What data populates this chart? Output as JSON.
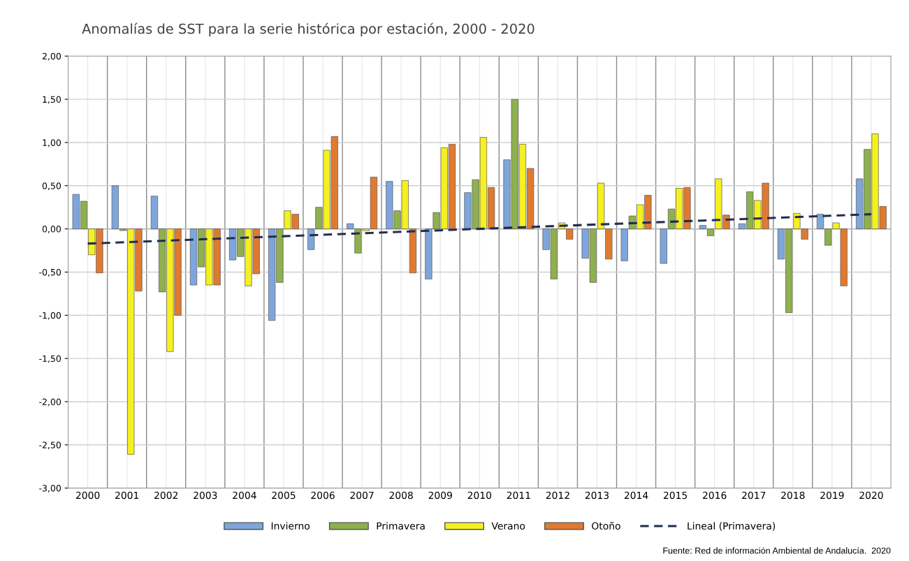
{
  "chart_data": {
    "type": "bar",
    "title": "Anomalías de SST para la serie histórica por estación, 2000 - 2020",
    "categories": [
      "2000",
      "2001",
      "2002",
      "2003",
      "2004",
      "2005",
      "2006",
      "2007",
      "2008",
      "2009",
      "2010",
      "2011",
      "2012",
      "2013",
      "2014",
      "2015",
      "2016",
      "2017",
      "2018",
      "2019",
      "2020"
    ],
    "series": [
      {
        "name": "Invierno",
        "color": "#7ea6dc",
        "values": [
          0.4,
          0.5,
          0.38,
          -0.65,
          -0.36,
          -1.06,
          -0.24,
          0.06,
          0.55,
          -0.58,
          0.42,
          0.8,
          -0.24,
          -0.34,
          -0.37,
          -0.4,
          0.04,
          0.06,
          -0.35,
          0.17,
          0.58
        ]
      },
      {
        "name": "Primavera",
        "color": "#8fb04e",
        "values": [
          0.32,
          -0.02,
          -0.73,
          -0.44,
          -0.32,
          -0.62,
          0.25,
          -0.28,
          0.21,
          0.19,
          0.57,
          1.5,
          -0.58,
          -0.62,
          0.15,
          0.23,
          -0.08,
          0.43,
          -0.97,
          -0.19,
          0.92
        ]
      },
      {
        "name": "Verano",
        "color": "#f5f020",
        "values": [
          -0.3,
          -2.61,
          -1.42,
          -0.65,
          -0.66,
          0.21,
          0.91,
          -0.02,
          0.56,
          0.94,
          1.06,
          0.98,
          0.07,
          0.53,
          0.28,
          0.47,
          0.58,
          0.33,
          0.18,
          0.07,
          1.1
        ]
      },
      {
        "name": "Otoño",
        "color": "#e07a30",
        "values": [
          -0.51,
          -0.72,
          -1.0,
          -0.65,
          -0.52,
          0.17,
          1.07,
          0.6,
          -0.51,
          0.98,
          0.48,
          0.7,
          -0.12,
          -0.35,
          0.39,
          0.48,
          0.16,
          0.53,
          -0.12,
          -0.66,
          0.26
        ]
      },
      {
        "name": "Lineal (Primavera)",
        "type": "line",
        "color": "#1f2d50",
        "line_style": "dashed",
        "values": [
          -0.17,
          -0.153,
          -0.136,
          -0.119,
          -0.102,
          -0.085,
          -0.068,
          -0.051,
          -0.034,
          -0.017,
          0.0,
          0.017,
          0.034,
          0.051,
          0.068,
          0.085,
          0.102,
          0.119,
          0.136,
          0.153,
          0.17
        ]
      }
    ],
    "ylim": [
      -3,
      2
    ],
    "yticks": [
      {
        "value": -3,
        "label": "-3,00"
      },
      {
        "value": -2.5,
        "label": "-2,50"
      },
      {
        "value": -2,
        "label": "-2,00"
      },
      {
        "value": -1.5,
        "label": "-1,50"
      },
      {
        "value": -1,
        "label": "-1,00"
      },
      {
        "value": -0.5,
        "label": "-0,50"
      },
      {
        "value": 0,
        "label": "0,00"
      },
      {
        "value": 0.5,
        "label": "0,50"
      },
      {
        "value": 1,
        "label": "1,00"
      },
      {
        "value": 1.5,
        "label": "1,50"
      },
      {
        "value": 2,
        "label": "2,00"
      }
    ],
    "grid": true,
    "legend": "bottom",
    "annotations": [
      "Fuente: Red de información Ambiental de Andalucía.  2020"
    ]
  }
}
